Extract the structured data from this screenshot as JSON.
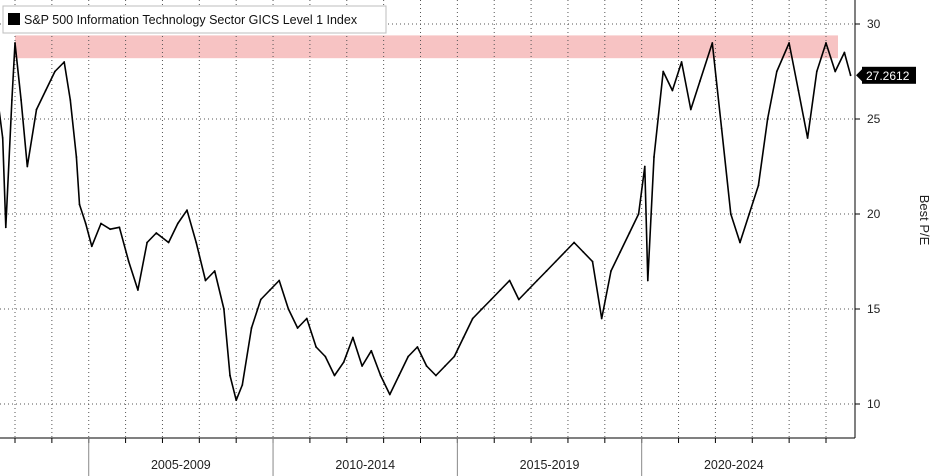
{
  "chart_data": {
    "type": "line",
    "legend": {
      "label": "S&P 500 Information Technology Sector GICS Level 1 Index",
      "placement": "top-left"
    },
    "ylabel": "Best P/E",
    "ylim": [
      8,
      30.5
    ],
    "yticks": [
      10,
      15,
      20,
      25,
      30
    ],
    "y_axis_side": "right",
    "grid": "dotted",
    "x_range": [
      "2002-07",
      "2025-09"
    ],
    "periods": [
      "2005-2009",
      "2010-2014",
      "2015-2019",
      "2020-2024"
    ],
    "highlight_band": {
      "y_from": 28.2,
      "y_to": 29.4,
      "color": "#f7c3c3"
    },
    "last_value_label": "27.2612",
    "series": [
      {
        "color": "#000000",
        "points": [
          [
            "2002-07",
            26.5
          ],
          [
            "2002-09",
            24.0
          ],
          [
            "2002-10",
            19.3
          ],
          [
            "2002-12",
            26.0
          ],
          [
            "2003-01",
            29.0
          ],
          [
            "2003-03",
            26.0
          ],
          [
            "2003-05",
            22.5
          ],
          [
            "2003-08",
            25.5
          ],
          [
            "2003-11",
            26.5
          ],
          [
            "2004-02",
            27.5
          ],
          [
            "2004-05",
            28.0
          ],
          [
            "2004-07",
            26.0
          ],
          [
            "2004-09",
            23.0
          ],
          [
            "2004-10",
            20.5
          ],
          [
            "2004-12",
            19.5
          ],
          [
            "2005-02",
            18.3
          ],
          [
            "2005-05",
            19.5
          ],
          [
            "2005-08",
            19.2
          ],
          [
            "2005-11",
            19.3
          ],
          [
            "2006-02",
            17.5
          ],
          [
            "2006-05",
            16.0
          ],
          [
            "2006-08",
            18.5
          ],
          [
            "2006-11",
            19.0
          ],
          [
            "2007-03",
            18.5
          ],
          [
            "2007-06",
            19.5
          ],
          [
            "2007-09",
            20.2
          ],
          [
            "2007-12",
            18.5
          ],
          [
            "2008-03",
            16.5
          ],
          [
            "2008-06",
            17.0
          ],
          [
            "2008-09",
            15.0
          ],
          [
            "2008-11",
            11.5
          ],
          [
            "2009-01",
            10.2
          ],
          [
            "2009-03",
            11.0
          ],
          [
            "2009-06",
            14.0
          ],
          [
            "2009-09",
            15.5
          ],
          [
            "2009-12",
            16.0
          ],
          [
            "2010-03",
            16.5
          ],
          [
            "2010-06",
            15.0
          ],
          [
            "2010-09",
            14.0
          ],
          [
            "2010-12",
            14.5
          ],
          [
            "2011-03",
            13.0
          ],
          [
            "2011-06",
            12.5
          ],
          [
            "2011-09",
            11.5
          ],
          [
            "2011-12",
            12.2
          ],
          [
            "2012-03",
            13.5
          ],
          [
            "2012-06",
            12.0
          ],
          [
            "2012-09",
            12.8
          ],
          [
            "2012-12",
            11.5
          ],
          [
            "2013-03",
            10.5
          ],
          [
            "2013-06",
            11.5
          ],
          [
            "2013-09",
            12.5
          ],
          [
            "2013-12",
            13.0
          ],
          [
            "2014-03",
            12.0
          ],
          [
            "2014-06",
            11.5
          ],
          [
            "2014-09",
            12.0
          ],
          [
            "2014-12",
            12.5
          ],
          [
            "2015-03",
            13.5
          ],
          [
            "2015-06",
            14.5
          ],
          [
            "2015-09",
            15.0
          ],
          [
            "2015-12",
            15.5
          ],
          [
            "2016-03",
            16.0
          ],
          [
            "2016-06",
            16.5
          ],
          [
            "2016-09",
            15.5
          ],
          [
            "2016-12",
            16.0
          ],
          [
            "2017-03",
            16.5
          ],
          [
            "2017-06",
            17.0
          ],
          [
            "2017-09",
            17.5
          ],
          [
            "2017-12",
            18.0
          ],
          [
            "2018-03",
            18.5
          ],
          [
            "2018-06",
            18.0
          ],
          [
            "2018-09",
            17.5
          ],
          [
            "2018-12",
            14.5
          ],
          [
            "2019-03",
            17.0
          ],
          [
            "2019-06",
            18.0
          ],
          [
            "2019-09",
            19.0
          ],
          [
            "2019-12",
            20.0
          ],
          [
            "2020-02",
            22.5
          ],
          [
            "2020-03",
            16.5
          ],
          [
            "2020-05",
            23.0
          ],
          [
            "2020-08",
            27.5
          ],
          [
            "2020-11",
            26.5
          ],
          [
            "2021-02",
            28.0
          ],
          [
            "2021-05",
            25.5
          ],
          [
            "2021-08",
            27.0
          ],
          [
            "2021-12",
            29.0
          ],
          [
            "2022-03",
            24.5
          ],
          [
            "2022-06",
            20.0
          ],
          [
            "2022-09",
            18.5
          ],
          [
            "2022-12",
            20.0
          ],
          [
            "2023-03",
            21.5
          ],
          [
            "2023-06",
            25.0
          ],
          [
            "2023-09",
            27.5
          ],
          [
            "2024-01",
            29.0
          ],
          [
            "2024-04",
            26.5
          ],
          [
            "2024-07",
            24.0
          ],
          [
            "2024-10",
            27.5
          ],
          [
            "2025-01",
            29.0
          ],
          [
            "2025-04",
            27.5
          ],
          [
            "2025-07",
            28.5
          ],
          [
            "2025-09",
            27.3
          ]
        ]
      }
    ]
  }
}
